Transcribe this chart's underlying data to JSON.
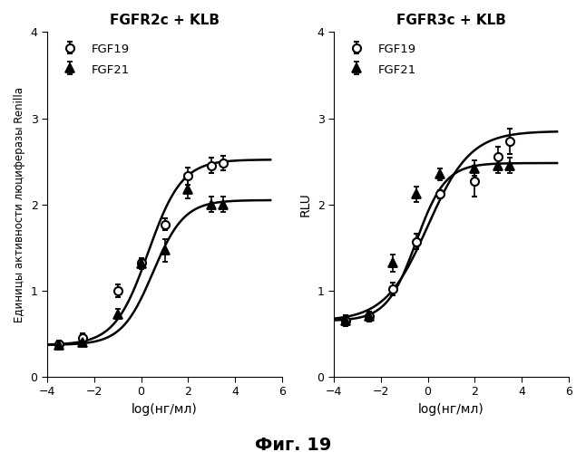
{
  "title_left": "FGFR2c + KLB",
  "title_right": "FGFR3c + KLB",
  "ylabel_left": "Единицы активности люциферазы Renilla",
  "ylabel_right": "RLU",
  "xlabel": "log(нг/мл)",
  "fig_caption": "Фиг. 19",
  "xlim": [
    -4,
    6
  ],
  "ylim": [
    0,
    4
  ],
  "xticks": [
    -4,
    -2,
    0,
    2,
    4,
    6
  ],
  "yticks": [
    0,
    1,
    2,
    3,
    4
  ],
  "left_fgf19_x": [
    -3.5,
    -2.5,
    -1,
    0,
    1,
    2,
    3,
    3.5
  ],
  "left_fgf19_y": [
    0.38,
    0.45,
    1.0,
    1.32,
    1.77,
    2.33,
    2.45,
    2.48
  ],
  "left_fgf19_yerr": [
    0.04,
    0.05,
    0.07,
    0.06,
    0.07,
    0.1,
    0.09,
    0.08
  ],
  "left_fgf21_x": [
    -3.5,
    -2.5,
    -1,
    0,
    1,
    2,
    3,
    3.5
  ],
  "left_fgf21_y": [
    0.37,
    0.4,
    0.73,
    1.31,
    1.47,
    2.18,
    2.0,
    2.0
  ],
  "left_fgf21_yerr": [
    0.04,
    0.04,
    0.06,
    0.06,
    0.13,
    0.11,
    0.09,
    0.09
  ],
  "left_fgf19_curve": {
    "x0": 0.3,
    "k": 1.4,
    "ymin": 0.37,
    "ymax": 2.52
  },
  "left_fgf21_curve": {
    "x0": 0.5,
    "k": 1.5,
    "ymin": 0.37,
    "ymax": 2.05
  },
  "right_fgf19_x": [
    -3.5,
    -2.5,
    -1.5,
    -0.5,
    0.5,
    2,
    3,
    3.5
  ],
  "right_fgf19_y": [
    0.65,
    0.7,
    1.02,
    1.57,
    2.12,
    2.27,
    2.55,
    2.73
  ],
  "right_fgf19_yerr": [
    0.06,
    0.06,
    0.07,
    0.09,
    0.05,
    0.18,
    0.12,
    0.15
  ],
  "right_fgf21_x": [
    -3.5,
    -2.5,
    -1.5,
    -0.5,
    0.5,
    2,
    3,
    3.5
  ],
  "right_fgf21_y": [
    0.65,
    0.7,
    1.32,
    2.12,
    2.35,
    2.42,
    2.45,
    2.45
  ],
  "right_fgf21_yerr": [
    0.06,
    0.06,
    0.1,
    0.09,
    0.07,
    0.09,
    0.09,
    0.09
  ],
  "right_fgf19_curve": {
    "x0": 0.0,
    "k": 1.1,
    "ymin": 0.65,
    "ymax": 2.85
  },
  "right_fgf21_curve": {
    "x0": -0.5,
    "k": 1.6,
    "ymin": 0.65,
    "ymax": 2.48
  },
  "curve_color": "#000000",
  "fgf19_marker": "o",
  "fgf21_marker": "^",
  "markersize": 6.5,
  "linewidth": 1.8
}
